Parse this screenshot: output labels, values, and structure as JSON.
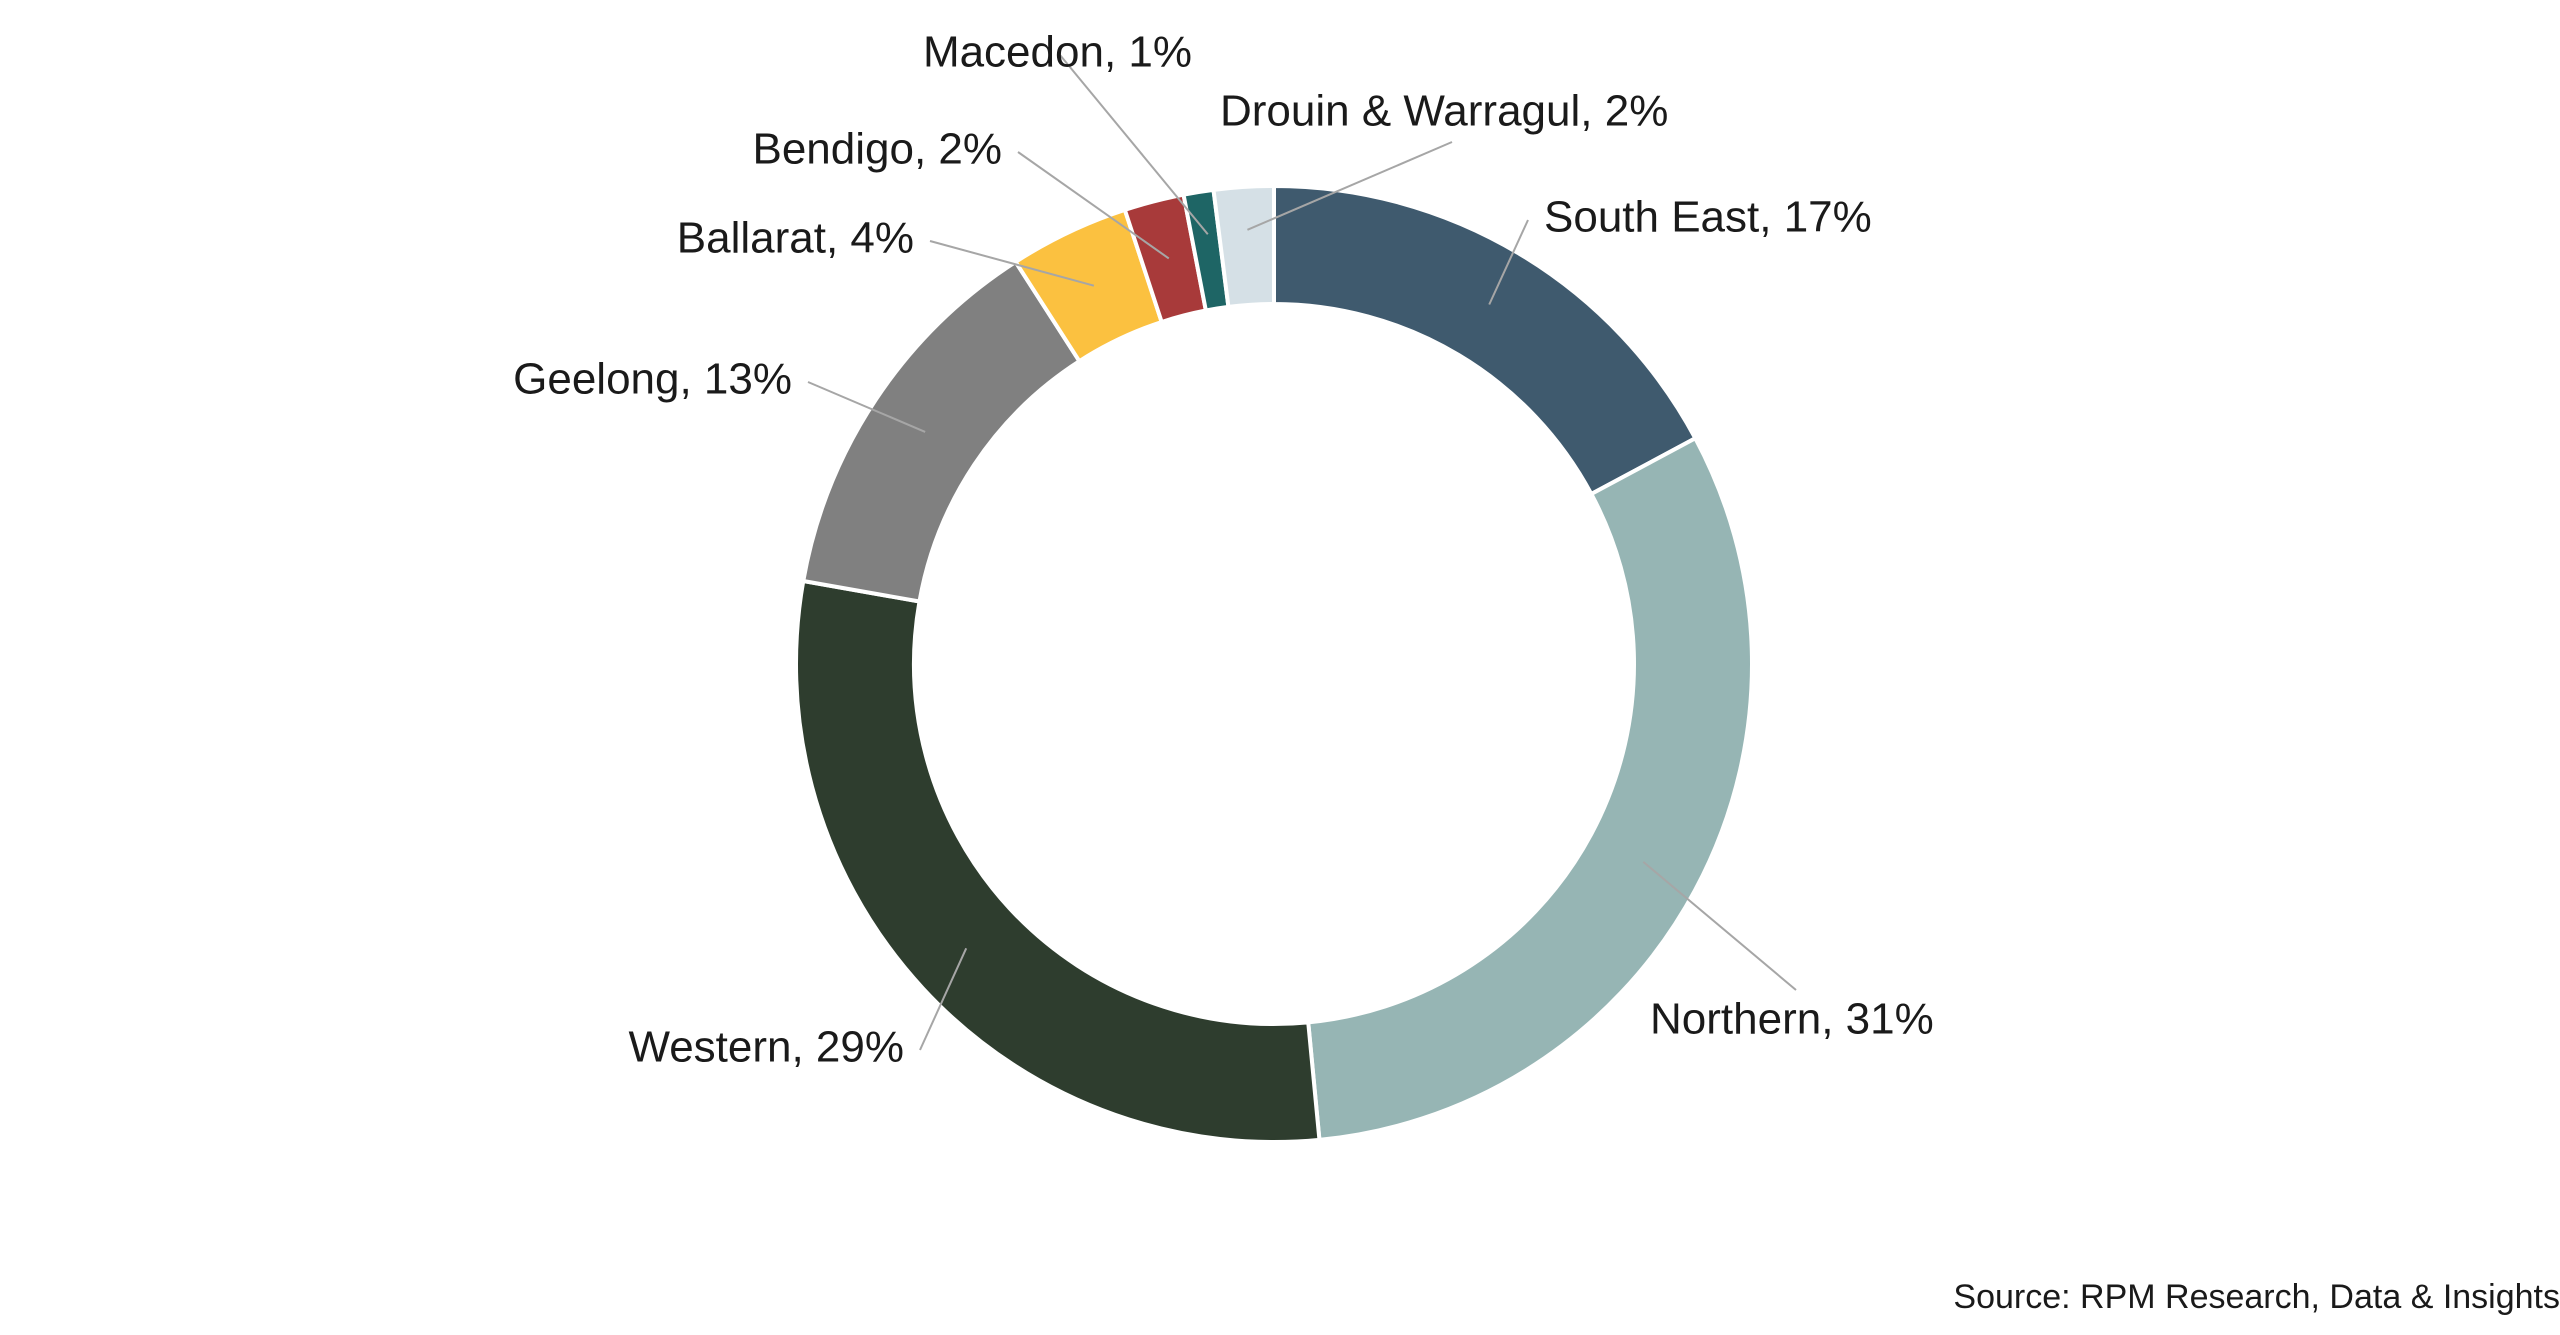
{
  "chart_data": {
    "type": "pie",
    "variant": "donut",
    "start": "top",
    "direction": "clockwise",
    "slices": [
      {
        "name": "South East",
        "value": 17,
        "label": "South East, 17%",
        "color": "#3f5a6e"
      },
      {
        "name": "Northern",
        "value": 31,
        "label": "Northern, 31%",
        "color": "#96b5b4"
      },
      {
        "name": "Western",
        "value": 29,
        "label": "Western, 29%",
        "color": "#2e3d2e"
      },
      {
        "name": "Geelong",
        "value": 13,
        "label": "Geelong, 13%",
        "color": "#808080"
      },
      {
        "name": "Ballarat",
        "value": 4,
        "label": "Ballarat, 4%",
        "color": "#fbc140"
      },
      {
        "name": "Bendigo",
        "value": 2,
        "label": "Bendigo, 2%",
        "color": "#a83a3a"
      },
      {
        "name": "Macedon",
        "value": 1,
        "label": "Macedon, 1%",
        "color": "#1e6565"
      },
      {
        "name": "Drouin & Warragul",
        "value": 2,
        "label": "Drouin & Warragul, 2%",
        "color": "#d5e0e6"
      }
    ]
  },
  "source": "Source: RPM Research, Data & Insights"
}
